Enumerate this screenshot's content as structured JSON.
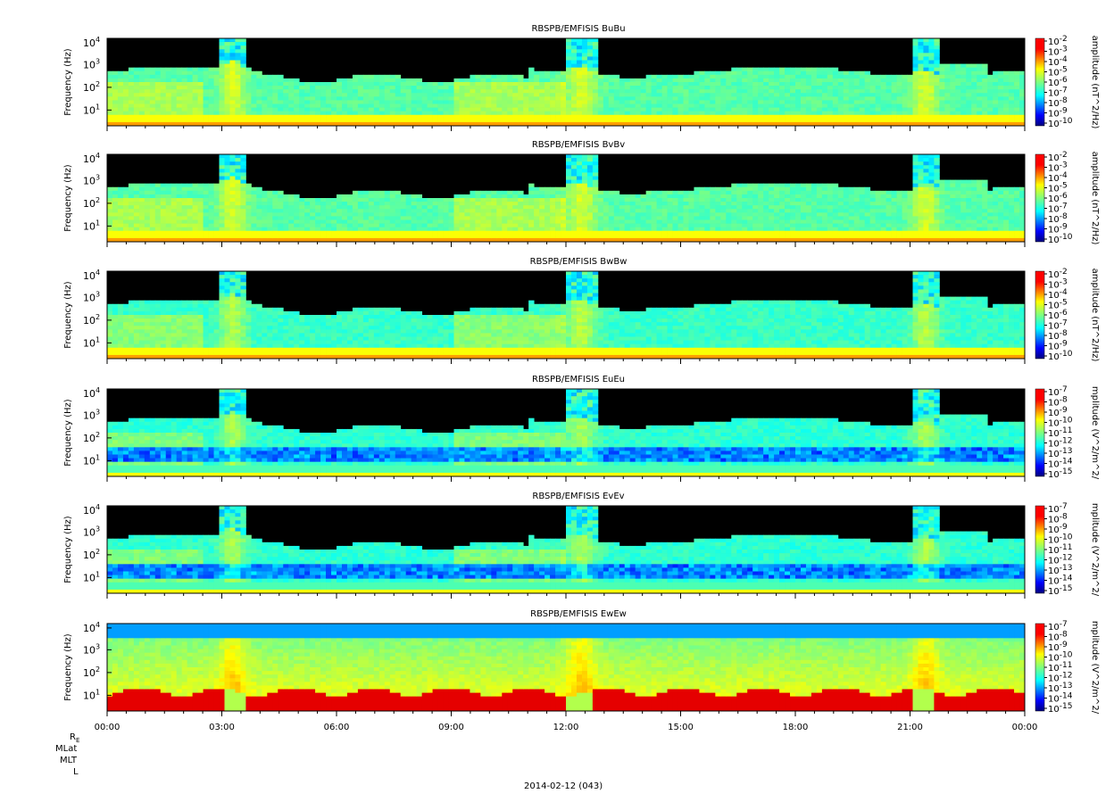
{
  "figure": {
    "date_label": "2014-02-12 (043)",
    "ephemeris_labels": [
      "R",
      "MLat",
      "MLT",
      "L"
    ],
    "re_subscript": "E"
  },
  "chart_data": [
    {
      "type": "heatmap",
      "title": "RBSPB/EMFISIS  BuBu",
      "ylabel": "Frequency (Hz)",
      "colorbar_label": "amplitude (nT^2/Hz)",
      "colorbar_ticks": [
        "10-2",
        "10-3",
        "10-4",
        "10-5",
        "10-6",
        "10-7",
        "10-8",
        "10-9",
        "10-10"
      ],
      "y_ticks": [
        "10",
        "10",
        "10",
        "10"
      ],
      "y_exponents": [
        "4",
        "3",
        "2",
        "1"
      ],
      "x_ticks": [
        "00:00",
        "03:00",
        "06:00",
        "09:00",
        "12:00",
        "15:00",
        "18:00",
        "21:00",
        "00:00"
      ],
      "x_range_hours": [
        0,
        24
      ],
      "y_range_hz": [
        2,
        12000
      ],
      "colorbar_range_log10": [
        -10,
        -2
      ],
      "style": "B"
    },
    {
      "type": "heatmap",
      "title": "RBSPB/EMFISIS  BvBv",
      "ylabel": "Frequency (Hz)",
      "colorbar_label": "amplitude (nT^2/Hz)",
      "colorbar_ticks": [
        "10-2",
        "10-3",
        "10-4",
        "10-5",
        "10-6",
        "10-7",
        "10-8",
        "10-9",
        "10-10"
      ],
      "y_ticks": [
        "10",
        "10",
        "10",
        "10"
      ],
      "y_exponents": [
        "4",
        "3",
        "2",
        "1"
      ],
      "x_ticks": [
        "00:00",
        "03:00",
        "06:00",
        "09:00",
        "12:00",
        "15:00",
        "18:00",
        "21:00",
        "00:00"
      ],
      "x_range_hours": [
        0,
        24
      ],
      "y_range_hz": [
        2,
        12000
      ],
      "colorbar_range_log10": [
        -10,
        -2
      ],
      "style": "B"
    },
    {
      "type": "heatmap",
      "title": "RBSPB/EMFISIS  BwBw",
      "ylabel": "Frequency (Hz)",
      "colorbar_label": "amplitude (nT^2/Hz)",
      "colorbar_ticks": [
        "10-2",
        "10-3",
        "10-4",
        "10-5",
        "10-6",
        "10-7",
        "10-8",
        "10-9",
        "10-10"
      ],
      "y_ticks": [
        "10",
        "10",
        "10",
        "10"
      ],
      "y_exponents": [
        "4",
        "3",
        "2",
        "1"
      ],
      "x_ticks": [
        "00:00",
        "03:00",
        "06:00",
        "09:00",
        "12:00",
        "15:00",
        "18:00",
        "21:00",
        "00:00"
      ],
      "x_range_hours": [
        0,
        24
      ],
      "y_range_hz": [
        2,
        12000
      ],
      "colorbar_range_log10": [
        -10,
        -2
      ],
      "style": "Bw"
    },
    {
      "type": "heatmap",
      "title": "RBSPB/EMFISIS  EuEu",
      "ylabel": "Frequency (Hz)",
      "colorbar_label": "mplitude (V^2/m^2/",
      "colorbar_ticks": [
        "10-7",
        "10-8",
        "10-9",
        "10-10",
        "10-11",
        "10-12",
        "10-13",
        "10-14",
        "10-15"
      ],
      "y_ticks": [
        "10",
        "10",
        "10",
        "10"
      ],
      "y_exponents": [
        "4",
        "3",
        "2",
        "1"
      ],
      "x_ticks": [
        "00:00",
        "03:00",
        "06:00",
        "09:00",
        "12:00",
        "15:00",
        "18:00",
        "21:00",
        "00:00"
      ],
      "x_range_hours": [
        0,
        24
      ],
      "y_range_hz": [
        2,
        12000
      ],
      "colorbar_range_log10": [
        -15,
        -7
      ],
      "style": "E"
    },
    {
      "type": "heatmap",
      "title": "RBSPB/EMFISIS  EvEv",
      "ylabel": "Frequency (Hz)",
      "colorbar_label": "mplitude (V^2/m^2/",
      "colorbar_ticks": [
        "10-7",
        "10-8",
        "10-9",
        "10-10",
        "10-11",
        "10-12",
        "10-13",
        "10-14",
        "10-15"
      ],
      "y_ticks": [
        "10",
        "10",
        "10",
        "10"
      ],
      "y_exponents": [
        "4",
        "3",
        "2",
        "1"
      ],
      "x_ticks": [
        "00:00",
        "03:00",
        "06:00",
        "09:00",
        "12:00",
        "15:00",
        "18:00",
        "21:00",
        "00:00"
      ],
      "x_range_hours": [
        0,
        24
      ],
      "y_range_hz": [
        2,
        12000
      ],
      "colorbar_range_log10": [
        -15,
        -7
      ],
      "style": "E"
    },
    {
      "type": "heatmap",
      "title": "RBSPB/EMFISIS  EwEw",
      "ylabel": "Frequency (Hz)",
      "colorbar_label": "mplitude (V^2/m^2/",
      "colorbar_ticks": [
        "10-7",
        "10-8",
        "10-9",
        "10-10",
        "10-11",
        "10-12",
        "10-13",
        "10-14",
        "10-15"
      ],
      "y_ticks": [
        "10",
        "10",
        "10",
        "10"
      ],
      "y_exponents": [
        "4",
        "3",
        "2",
        "1"
      ],
      "x_ticks": [
        "00:00",
        "03:00",
        "06:00",
        "09:00",
        "12:00",
        "15:00",
        "18:00",
        "21:00",
        "00:00"
      ],
      "x_range_hours": [
        0,
        24
      ],
      "y_range_hz": [
        2,
        12000
      ],
      "colorbar_range_log10": [
        -15,
        -7
      ],
      "style": "Ew"
    }
  ],
  "colors": {
    "jet": [
      "#00007f",
      "#0000ff",
      "#007fff",
      "#00ffff",
      "#7fff7f",
      "#ffff00",
      "#ff7f00",
      "#ff0000",
      "#7f0000"
    ],
    "background": "#000000"
  }
}
